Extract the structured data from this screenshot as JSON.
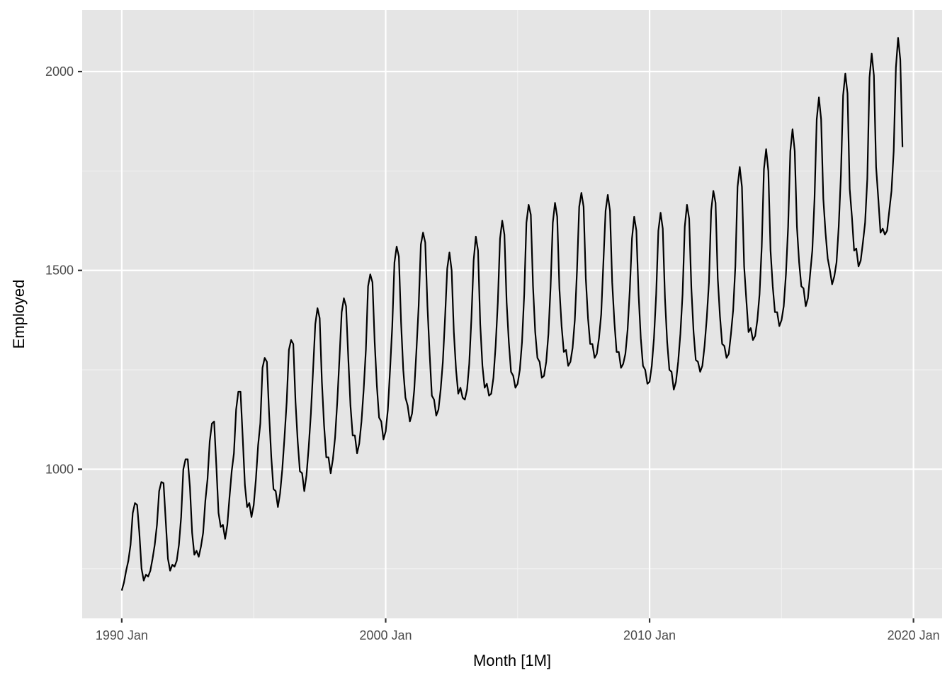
{
  "chart_data": {
    "type": "line",
    "xlabel": "Month [1M]",
    "ylabel": "Employed",
    "x_ticks": [
      "1990 Jan",
      "2000 Jan",
      "2010 Jan",
      "2020 Jan"
    ],
    "y_ticks": [
      "1000",
      "1500",
      "2000"
    ],
    "xlim": [
      "1988-07",
      "2021-02"
    ],
    "ylim": [
      625,
      2155
    ],
    "series": [
      {
        "start": "1990-01",
        "frequency": "monthly",
        "values": [
          695,
          715,
          745,
          770,
          810,
          890,
          915,
          910,
          840,
          750,
          720,
          735,
          730,
          745,
          775,
          810,
          860,
          945,
          968,
          965,
          870,
          775,
          745,
          760,
          755,
          770,
          810,
          880,
          1000,
          1025,
          1025,
          955,
          840,
          785,
          795,
          780,
          805,
          840,
          920,
          975,
          1070,
          1115,
          1120,
          1010,
          890,
          855,
          860,
          825,
          860,
          930,
          995,
          1040,
          1150,
          1195,
          1195,
          1080,
          960,
          905,
          915,
          880,
          910,
          975,
          1060,
          1115,
          1255,
          1280,
          1270,
          1140,
          1030,
          950,
          945,
          905,
          940,
          1000,
          1080,
          1170,
          1300,
          1325,
          1315,
          1170,
          1070,
          995,
          990,
          945,
          985,
          1055,
          1140,
          1250,
          1365,
          1405,
          1380,
          1220,
          1110,
          1030,
          1030,
          990,
          1025,
          1080,
          1170,
          1280,
          1395,
          1430,
          1410,
          1280,
          1160,
          1085,
          1085,
          1040,
          1065,
          1120,
          1200,
          1300,
          1460,
          1490,
          1470,
          1320,
          1210,
          1130,
          1120,
          1075,
          1095,
          1150,
          1250,
          1360,
          1520,
          1560,
          1535,
          1370,
          1250,
          1180,
          1160,
          1120,
          1140,
          1200,
          1300,
          1410,
          1565,
          1595,
          1570,
          1410,
          1290,
          1185,
          1175,
          1135,
          1150,
          1200,
          1270,
          1380,
          1505,
          1545,
          1500,
          1345,
          1250,
          1190,
          1205,
          1180,
          1175,
          1200,
          1265,
          1380,
          1525,
          1585,
          1550,
          1365,
          1260,
          1205,
          1215,
          1185,
          1190,
          1230,
          1310,
          1420,
          1580,
          1625,
          1590,
          1420,
          1320,
          1245,
          1235,
          1205,
          1215,
          1250,
          1320,
          1440,
          1620,
          1665,
          1640,
          1460,
          1345,
          1280,
          1270,
          1230,
          1235,
          1270,
          1340,
          1460,
          1620,
          1670,
          1635,
          1455,
          1360,
          1295,
          1300,
          1260,
          1270,
          1305,
          1375,
          1500,
          1660,
          1695,
          1660,
          1480,
          1380,
          1315,
          1315,
          1280,
          1290,
          1330,
          1390,
          1520,
          1650,
          1690,
          1650,
          1470,
          1370,
          1295,
          1295,
          1255,
          1265,
          1290,
          1350,
          1450,
          1580,
          1635,
          1600,
          1440,
          1330,
          1260,
          1250,
          1215,
          1220,
          1260,
          1330,
          1440,
          1600,
          1645,
          1605,
          1430,
          1320,
          1250,
          1245,
          1200,
          1220,
          1270,
          1340,
          1440,
          1610,
          1665,
          1630,
          1455,
          1345,
          1275,
          1270,
          1245,
          1260,
          1310,
          1380,
          1470,
          1650,
          1700,
          1670,
          1480,
          1385,
          1315,
          1310,
          1280,
          1290,
          1340,
          1400,
          1510,
          1710,
          1760,
          1710,
          1510,
          1425,
          1345,
          1355,
          1325,
          1335,
          1375,
          1440,
          1560,
          1755,
          1805,
          1750,
          1550,
          1460,
          1395,
          1395,
          1360,
          1375,
          1410,
          1490,
          1610,
          1800,
          1855,
          1800,
          1610,
          1520,
          1460,
          1455,
          1410,
          1430,
          1490,
          1550,
          1680,
          1880,
          1935,
          1880,
          1680,
          1595,
          1530,
          1500,
          1465,
          1485,
          1520,
          1610,
          1740,
          1940,
          1995,
          1945,
          1705,
          1635,
          1550,
          1555,
          1510,
          1525,
          1570,
          1620,
          1730,
          1985,
          2045,
          1990,
          1760,
          1680,
          1595,
          1605,
          1590,
          1600,
          1650,
          1700,
          1800,
          2010,
          2085,
          2030,
          1810
        ]
      }
    ],
    "grid": true,
    "legend": "none",
    "colors": {
      "panel_background": "#e5e5e5",
      "grid_major": "#ffffff",
      "grid_minor": "#f2f2f2",
      "line": "#000000",
      "tick_text": "#4d4d4d",
      "axis_title": "#000000",
      "tick_mark": "#333333"
    }
  }
}
